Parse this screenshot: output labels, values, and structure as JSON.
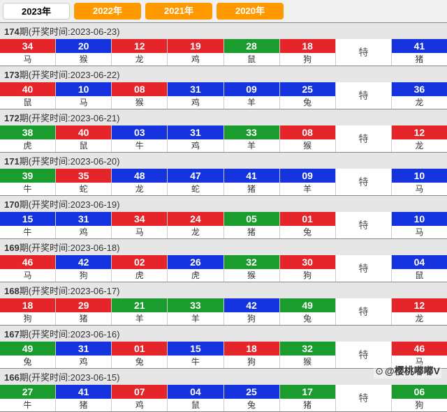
{
  "tabs": [
    {
      "label": "2023年",
      "active": true
    },
    {
      "label": "2022年",
      "active": false
    },
    {
      "label": "2021年",
      "active": false
    },
    {
      "label": "2020年",
      "active": false
    }
  ],
  "te_label": "特",
  "header_prefix": "期(开奖时间:",
  "header_suffix": ")",
  "colors": {
    "red": "#e6252a",
    "blue": "#1534e0",
    "green": "#1a9d2e",
    "tab_inactive": "#ff9900",
    "tab_active_bg": "#ffffff"
  },
  "watermark": "@樱桃嘟嘟V",
  "draws": [
    {
      "period": "174",
      "date": "2023-06-23",
      "balls": [
        {
          "n": "34",
          "z": "马",
          "c": "red"
        },
        {
          "n": "20",
          "z": "猴",
          "c": "blue"
        },
        {
          "n": "12",
          "z": "龙",
          "c": "red"
        },
        {
          "n": "19",
          "z": "鸡",
          "c": "red"
        },
        {
          "n": "28",
          "z": "鼠",
          "c": "green"
        },
        {
          "n": "18",
          "z": "狗",
          "c": "red"
        },
        {
          "n": "41",
          "z": "猪",
          "c": "blue"
        }
      ]
    },
    {
      "period": "173",
      "date": "2023-06-22",
      "balls": [
        {
          "n": "40",
          "z": "鼠",
          "c": "red"
        },
        {
          "n": "10",
          "z": "马",
          "c": "blue"
        },
        {
          "n": "08",
          "z": "猴",
          "c": "red"
        },
        {
          "n": "31",
          "z": "鸡",
          "c": "blue"
        },
        {
          "n": "09",
          "z": "羊",
          "c": "blue"
        },
        {
          "n": "25",
          "z": "兔",
          "c": "blue"
        },
        {
          "n": "36",
          "z": "龙",
          "c": "blue"
        }
      ]
    },
    {
      "period": "172",
      "date": "2023-06-21",
      "balls": [
        {
          "n": "38",
          "z": "虎",
          "c": "green"
        },
        {
          "n": "40",
          "z": "鼠",
          "c": "red"
        },
        {
          "n": "03",
          "z": "牛",
          "c": "blue"
        },
        {
          "n": "31",
          "z": "鸡",
          "c": "blue"
        },
        {
          "n": "33",
          "z": "羊",
          "c": "green"
        },
        {
          "n": "08",
          "z": "猴",
          "c": "red"
        },
        {
          "n": "12",
          "z": "龙",
          "c": "red"
        }
      ]
    },
    {
      "period": "171",
      "date": "2023-06-20",
      "balls": [
        {
          "n": "39",
          "z": "牛",
          "c": "green"
        },
        {
          "n": "35",
          "z": "蛇",
          "c": "red"
        },
        {
          "n": "48",
          "z": "龙",
          "c": "blue"
        },
        {
          "n": "47",
          "z": "蛇",
          "c": "blue"
        },
        {
          "n": "41",
          "z": "猪",
          "c": "blue"
        },
        {
          "n": "09",
          "z": "羊",
          "c": "blue"
        },
        {
          "n": "10",
          "z": "马",
          "c": "blue"
        }
      ]
    },
    {
      "period": "170",
      "date": "2023-06-19",
      "balls": [
        {
          "n": "15",
          "z": "牛",
          "c": "blue"
        },
        {
          "n": "31",
          "z": "鸡",
          "c": "blue"
        },
        {
          "n": "34",
          "z": "马",
          "c": "red"
        },
        {
          "n": "24",
          "z": "龙",
          "c": "red"
        },
        {
          "n": "05",
          "z": "猪",
          "c": "green"
        },
        {
          "n": "01",
          "z": "兔",
          "c": "red"
        },
        {
          "n": "10",
          "z": "马",
          "c": "blue"
        }
      ]
    },
    {
      "period": "169",
      "date": "2023-06-18",
      "balls": [
        {
          "n": "46",
          "z": "马",
          "c": "red"
        },
        {
          "n": "42",
          "z": "狗",
          "c": "blue"
        },
        {
          "n": "02",
          "z": "虎",
          "c": "red"
        },
        {
          "n": "26",
          "z": "虎",
          "c": "blue"
        },
        {
          "n": "32",
          "z": "猴",
          "c": "green"
        },
        {
          "n": "30",
          "z": "狗",
          "c": "red"
        },
        {
          "n": "04",
          "z": "鼠",
          "c": "blue"
        }
      ]
    },
    {
      "period": "168",
      "date": "2023-06-17",
      "balls": [
        {
          "n": "18",
          "z": "狗",
          "c": "red"
        },
        {
          "n": "29",
          "z": "猪",
          "c": "red"
        },
        {
          "n": "21",
          "z": "羊",
          "c": "green"
        },
        {
          "n": "33",
          "z": "羊",
          "c": "green"
        },
        {
          "n": "42",
          "z": "狗",
          "c": "blue"
        },
        {
          "n": "49",
          "z": "兔",
          "c": "green"
        },
        {
          "n": "12",
          "z": "龙",
          "c": "red"
        }
      ]
    },
    {
      "period": "167",
      "date": "2023-06-16",
      "balls": [
        {
          "n": "49",
          "z": "兔",
          "c": "green"
        },
        {
          "n": "31",
          "z": "鸡",
          "c": "blue"
        },
        {
          "n": "01",
          "z": "兔",
          "c": "red"
        },
        {
          "n": "15",
          "z": "牛",
          "c": "blue"
        },
        {
          "n": "18",
          "z": "狗",
          "c": "red"
        },
        {
          "n": "32",
          "z": "猴",
          "c": "green"
        },
        {
          "n": "46",
          "z": "马",
          "c": "red"
        }
      ]
    },
    {
      "period": "166",
      "date": "2023-06-15",
      "balls": [
        {
          "n": "27",
          "z": "牛",
          "c": "green"
        },
        {
          "n": "41",
          "z": "猪",
          "c": "blue"
        },
        {
          "n": "07",
          "z": "鸡",
          "c": "red"
        },
        {
          "n": "04",
          "z": "鼠",
          "c": "blue"
        },
        {
          "n": "25",
          "z": "兔",
          "c": "blue"
        },
        {
          "n": "17",
          "z": "猪",
          "c": "green"
        },
        {
          "n": "06",
          "z": "狗",
          "c": "green"
        }
      ]
    }
  ]
}
